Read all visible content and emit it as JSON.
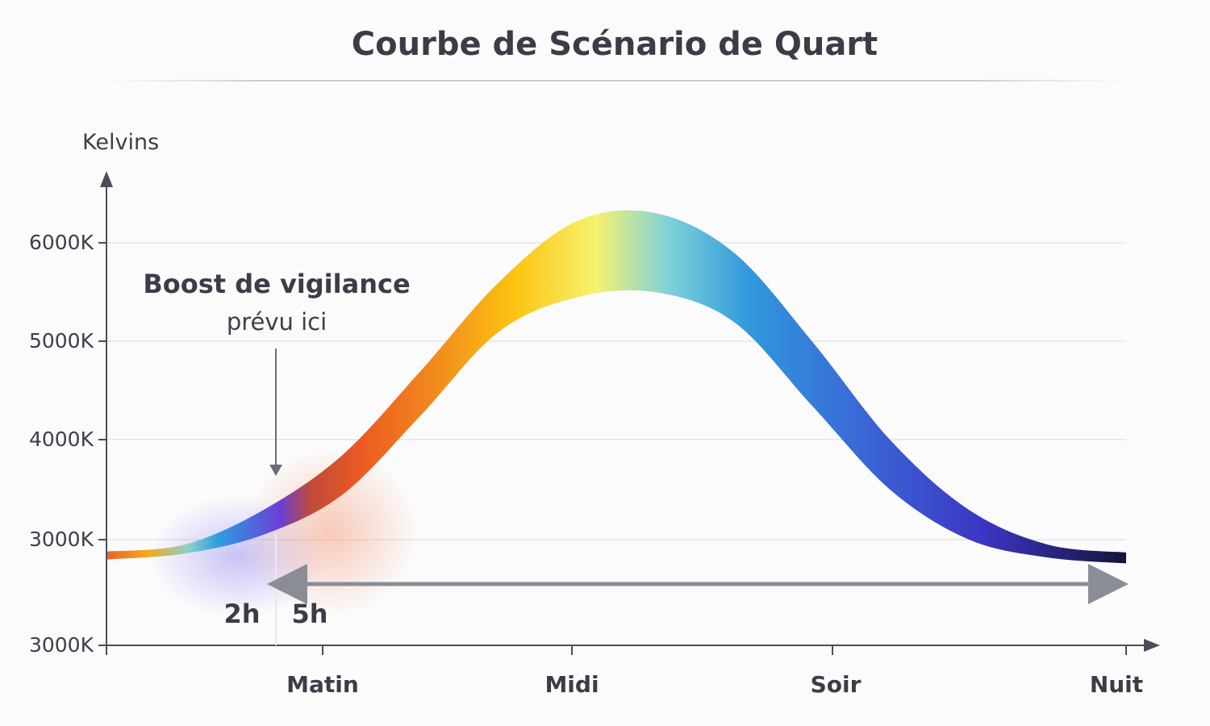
{
  "chart_data": {
    "type": "area",
    "title": "Courbe de Scénario de Quart",
    "ylabel": "Kelvins",
    "xlabel": "",
    "y_tick_labels": [
      "3000K",
      "3000K",
      "4000K",
      "5000K",
      "6000K"
    ],
    "x_tick_labels": [
      "Matin",
      "Midi",
      "Soir",
      "Nuit"
    ],
    "grid": true,
    "series": [
      {
        "values_upper": [
          2880,
          2950,
          3300,
          3850,
          4700,
          5600,
          6220,
          6300,
          5900,
          5000,
          4000,
          3300,
          2950,
          2870
        ],
        "values_lower": [
          2800,
          2860,
          3050,
          3450,
          4250,
          5100,
          5450,
          5500,
          5200,
          4350,
          3500,
          3000,
          2820,
          2760
        ]
      }
    ],
    "annotations": {
      "boost_title": "Boost de vigilance",
      "boost_sub": "prévu ici",
      "marker_a": "2h",
      "marker_b": "5h"
    },
    "colors": {
      "warm": "#e8622a",
      "amber": "#f7a818",
      "yellow": "#f5f06a",
      "cyan": "#7fd3d8",
      "blue": "#2d8fdc",
      "indigo": "#3c36c2",
      "night": "#16163a",
      "axis": "#4a4e5a",
      "grid": "#e3e4e8",
      "arrow": "#8a8d96"
    }
  }
}
